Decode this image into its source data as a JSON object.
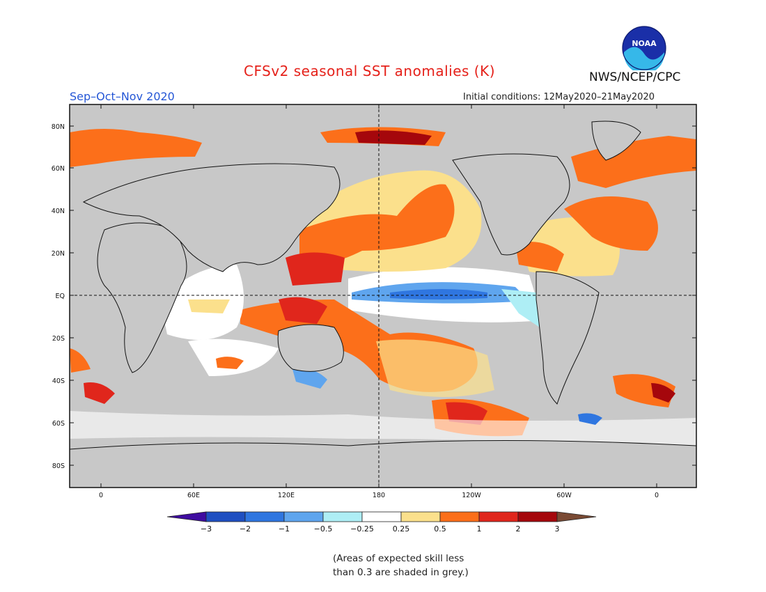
{
  "header": {
    "title": "CFSv2 seasonal SST anomalies (K)",
    "agency": "NWS/NCEP/CPC",
    "season": "Sep–Oct–Nov 2020",
    "initial_conditions": "Initial conditions: 12May2020–21May2020",
    "logo_text": "NOAA"
  },
  "map": {
    "lat_labels": [
      "80N",
      "60N",
      "40N",
      "20N",
      "EQ",
      "20S",
      "40S",
      "60S",
      "80S"
    ],
    "lon_labels": [
      "0",
      "60E",
      "120E",
      "180",
      "120W",
      "60W",
      "0"
    ],
    "background_color": "#c8c8c8",
    "land_color": "#c8c8c8"
  },
  "legend": {
    "tick_labels": [
      "−3",
      "−2",
      "−1",
      "−0.5",
      "−0.25",
      "0.25",
      "0.5",
      "1",
      "2",
      "3"
    ],
    "colors": [
      "#1f4fc1",
      "#2f76e0",
      "#5fa5ee",
      "#aeeef5",
      "#ffffff",
      "#fbe08c",
      "#fc6f1a",
      "#e0261c",
      "#a5070c"
    ],
    "low_arrow_color": "#3f0ca0",
    "high_arrow_color": "#7a4a34"
  },
  "note": {
    "line1": "(Areas of expected skill less",
    "line2": "than 0.3 are shaded in grey.)"
  }
}
